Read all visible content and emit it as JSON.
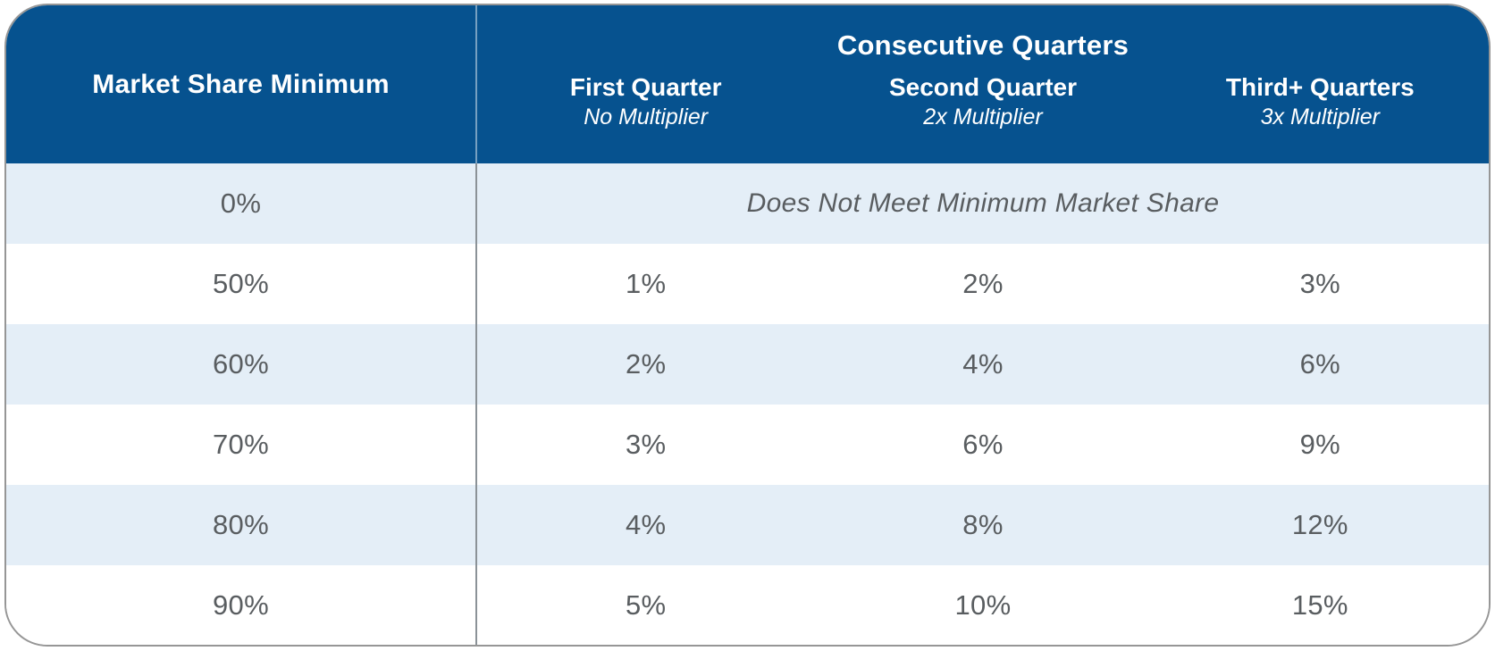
{
  "table": {
    "col1_header": "Market Share Minimum",
    "group_header": "Consecutive Quarters",
    "columns": [
      {
        "label": "First Quarter",
        "multiplier": "No Multiplier"
      },
      {
        "label": "Second Quarter",
        "multiplier": "2x Multiplier"
      },
      {
        "label": "Third+ Quarters",
        "multiplier": "3x Multiplier"
      }
    ],
    "no_meet_row": {
      "share": "0%",
      "note": "Does Not Meet Minimum Market Share"
    },
    "rows": [
      {
        "share": "50%",
        "values": [
          "1%",
          "2%",
          "3%"
        ]
      },
      {
        "share": "60%",
        "values": [
          "2%",
          "4%",
          "6%"
        ]
      },
      {
        "share": "70%",
        "values": [
          "3%",
          "6%",
          "9%"
        ]
      },
      {
        "share": "80%",
        "values": [
          "4%",
          "8%",
          "12%"
        ]
      },
      {
        "share": "90%",
        "values": [
          "5%",
          "10%",
          "15%"
        ]
      }
    ],
    "colors": {
      "header_background": "#06528F",
      "header_text": "#FFFFFF",
      "alt_row_background": "#E4EEF7",
      "body_text": "#595D60",
      "card_border": "#969696",
      "column_divider": "#8B9297"
    }
  },
  "chart_data": {
    "type": "table",
    "title": "Consecutive Quarters",
    "columns": [
      "Market Share Minimum",
      "First Quarter (No Multiplier)",
      "Second Quarter (2x Multiplier)",
      "Third+ Quarters (3x Multiplier)"
    ],
    "rows": [
      [
        "0%",
        "Does Not Meet Minimum Market Share",
        "Does Not Meet Minimum Market Share",
        "Does Not Meet Minimum Market Share"
      ],
      [
        "50%",
        "1%",
        "2%",
        "3%"
      ],
      [
        "60%",
        "2%",
        "4%",
        "6%"
      ],
      [
        "70%",
        "3%",
        "6%",
        "9%"
      ],
      [
        "80%",
        "4%",
        "8%",
        "12%"
      ],
      [
        "90%",
        "5%",
        "10%",
        "15%"
      ]
    ],
    "layout": {
      "header_style": "dark-blue band with merged group header over last three columns",
      "row_striping": "alternating light-blue / white starting with light-blue",
      "grid": "single vertical divider after first column only"
    }
  }
}
